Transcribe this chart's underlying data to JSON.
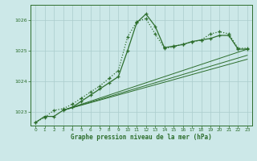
{
  "bg_color": "#cce8e8",
  "grid_color": "#aacccc",
  "line_color": "#2d6e2d",
  "xlabel": "Graphe pression niveau de la mer (hPa)",
  "ylabel_ticks": [
    1023,
    1024,
    1025,
    1026
  ],
  "x_ticks": [
    0,
    1,
    2,
    3,
    4,
    5,
    6,
    7,
    8,
    9,
    10,
    11,
    12,
    13,
    14,
    15,
    16,
    17,
    18,
    19,
    20,
    21,
    22,
    23
  ],
  "xlim": [
    -0.5,
    23.5
  ],
  "ylim": [
    1022.55,
    1026.5
  ],
  "line1_x": [
    0,
    1,
    2,
    3,
    4,
    5,
    6,
    7,
    8,
    9,
    10,
    11,
    12,
    13,
    14,
    15,
    16,
    17,
    18,
    19,
    20,
    21,
    22,
    23
  ],
  "line1_y": [
    1022.65,
    1022.85,
    1022.85,
    1023.05,
    1023.15,
    1023.35,
    1023.55,
    1023.75,
    1023.95,
    1024.15,
    1025.0,
    1025.92,
    1026.2,
    1025.8,
    1025.1,
    1025.15,
    1025.2,
    1025.3,
    1025.35,
    1025.4,
    1025.5,
    1025.5,
    1025.05,
    1025.05
  ],
  "line2_x": [
    0,
    1,
    2,
    3,
    4,
    5,
    6,
    7,
    8,
    9,
    10,
    11,
    12,
    13,
    14,
    15,
    16,
    17,
    18,
    19,
    20,
    21,
    22,
    23
  ],
  "line2_y": [
    1022.65,
    1022.82,
    1023.05,
    1023.1,
    1023.25,
    1023.45,
    1023.65,
    1023.85,
    1024.1,
    1024.35,
    1025.45,
    1025.95,
    1026.05,
    1025.55,
    1025.08,
    1025.12,
    1025.22,
    1025.28,
    1025.35,
    1025.55,
    1025.62,
    1025.55,
    1025.08,
    1025.08
  ],
  "line3_x": [
    3,
    23
  ],
  "line3_y": [
    1023.05,
    1025.05
  ],
  "line4_x": [
    3,
    23
  ],
  "line4_y": [
    1023.05,
    1024.85
  ],
  "line5_x": [
    3,
    23
  ],
  "line5_y": [
    1023.05,
    1024.72
  ]
}
